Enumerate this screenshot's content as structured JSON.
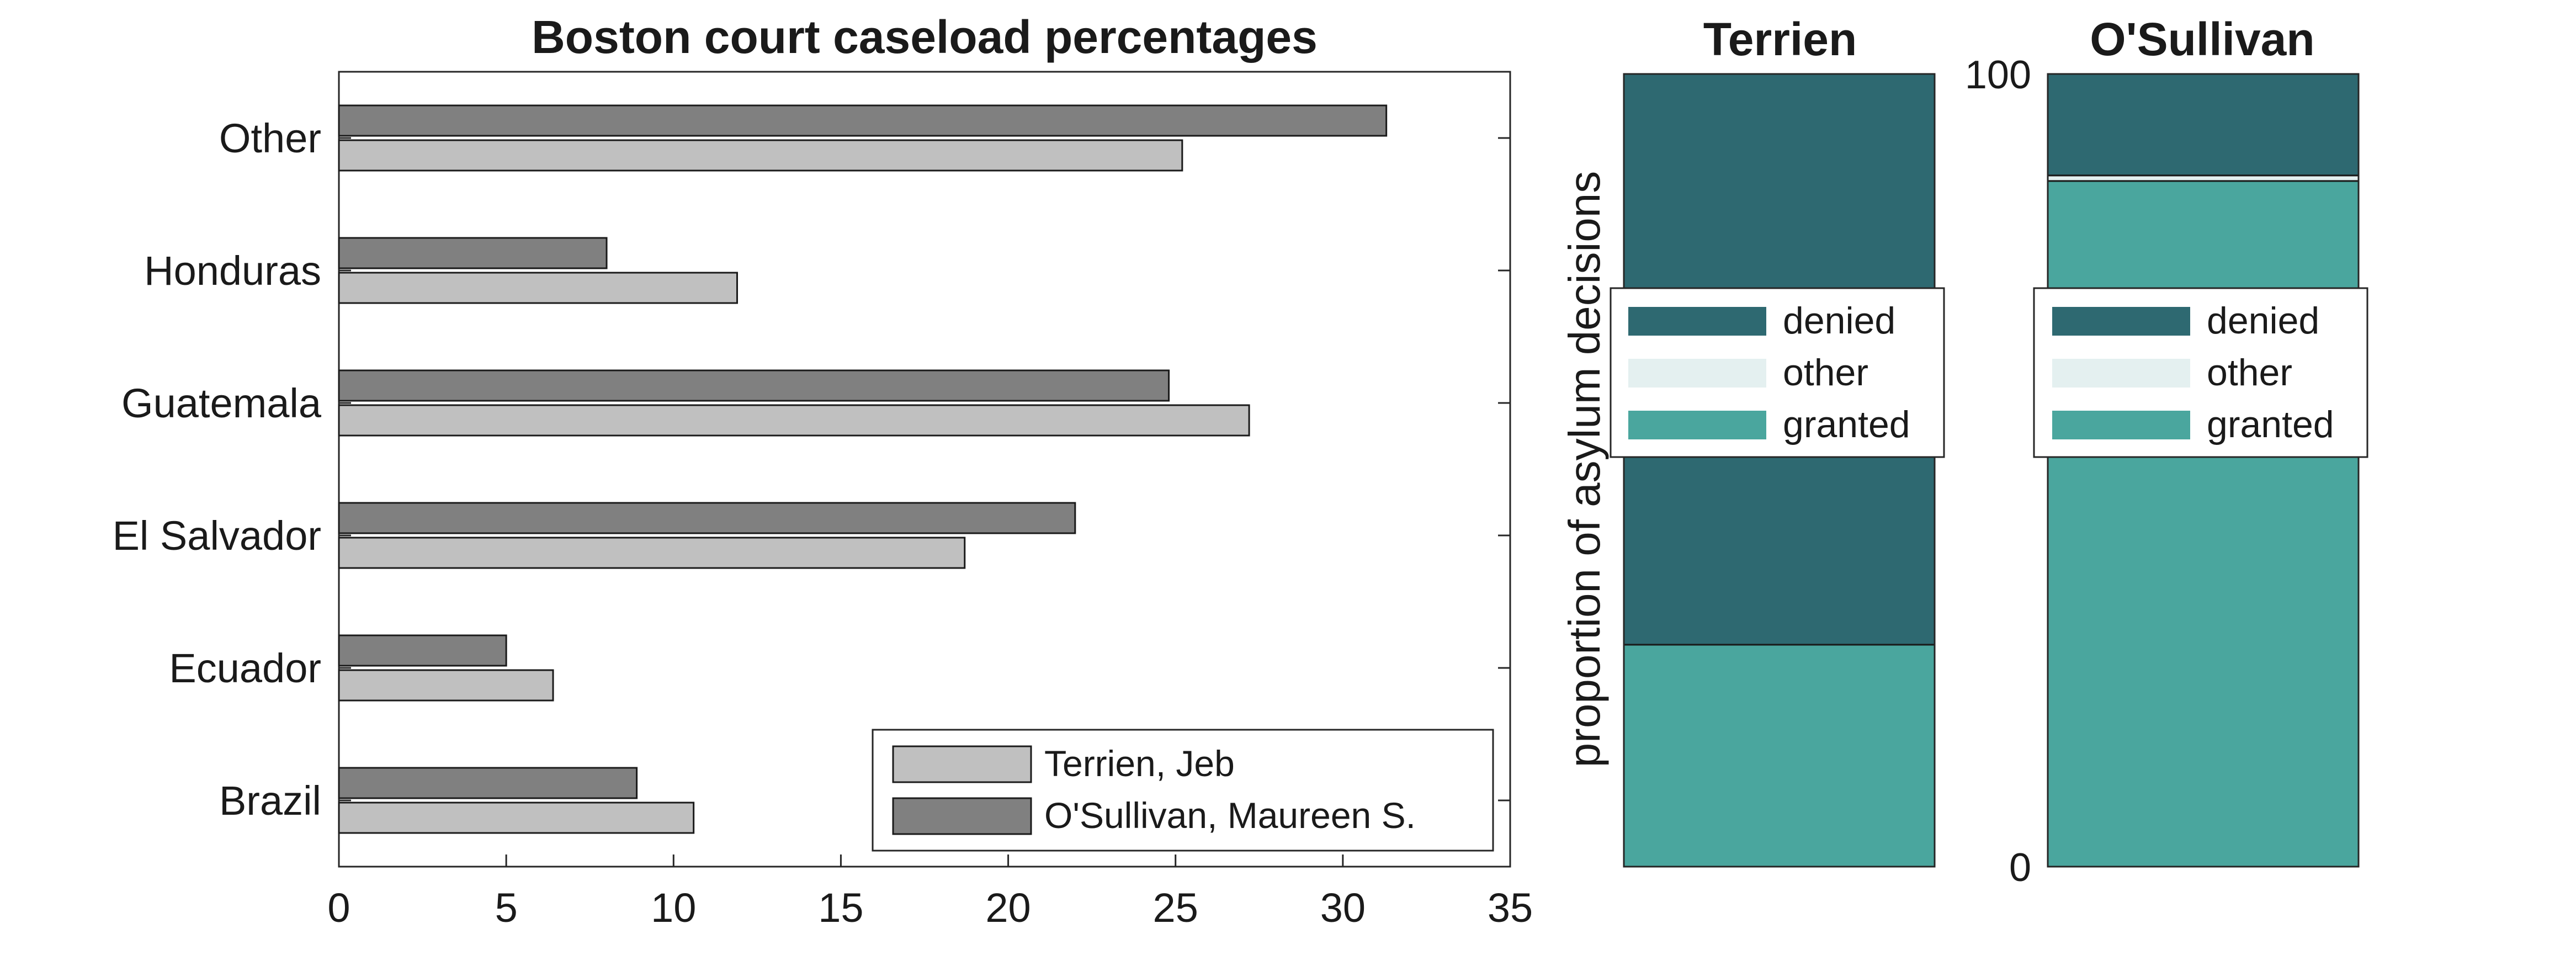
{
  "chart_data": [
    {
      "type": "bar",
      "orientation": "horizontal",
      "title": "Boston court caseload percentages",
      "categories": [
        "Brazil",
        "Ecuador",
        "El Salvador",
        "Guatemala",
        "Honduras",
        "Other"
      ],
      "series": [
        {
          "name": "Terrien, Jeb",
          "color": "#c0c0c0",
          "values": [
            10.6,
            6.4,
            18.7,
            27.2,
            11.9,
            25.2
          ]
        },
        {
          "name": "O'Sullivan, Maureen S.",
          "color": "#808080",
          "values": [
            8.9,
            5.0,
            22.0,
            24.8,
            8.0,
            31.3
          ]
        }
      ],
      "xlim": [
        0,
        35
      ],
      "xticks": [
        "0",
        "5",
        "10",
        "15",
        "20",
        "25",
        "30",
        "35"
      ],
      "grid": false,
      "legend": "bottom-right"
    },
    {
      "type": "bar",
      "stacked": true,
      "title": "Terrien",
      "ylabel": "proportion of asylum decisions",
      "ylim": [
        0,
        100
      ],
      "segments": [
        {
          "name": "granted",
          "color": "#4aa69e",
          "value": 28.0
        },
        {
          "name": "other",
          "color": "#e4f0f0",
          "value": 0.0
        },
        {
          "name": "denied",
          "color": "#2e6971",
          "value": 72.0
        }
      ],
      "legend": "center"
    },
    {
      "type": "bar",
      "stacked": true,
      "title": "O'Sullivan",
      "ylim": [
        0,
        100
      ],
      "yticks": [
        "0",
        "100"
      ],
      "segments": [
        {
          "name": "granted",
          "color": "#4aa69e",
          "value": 86.5
        },
        {
          "name": "other",
          "color": "#e4f0f0",
          "value": 0.7
        },
        {
          "name": "denied",
          "color": "#2e6971",
          "value": 12.8
        }
      ],
      "legend": "center"
    }
  ]
}
